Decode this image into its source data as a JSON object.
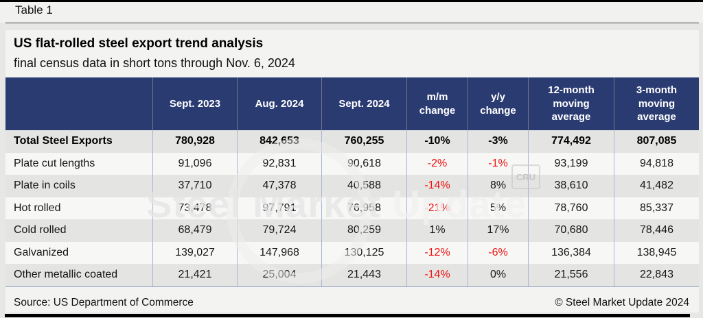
{
  "page": {
    "tab_label": "Table 1",
    "title": "US flat-rolled steel export trend analysis",
    "subtitle": "final census data in short tons through Nov. 6, 2024",
    "source": "Source: US Department of Commerce",
    "copyright": "© Steel Market Update 2024"
  },
  "colors": {
    "header_bg": "#2a3b72",
    "row_alt": "#e4e4e3",
    "row_base": "#f7f7f5",
    "negative_pct": "#ee1111",
    "divider_body": "#a8b4d4",
    "divider_header": "#707689"
  },
  "watermark": {
    "text_primary": "Steel Market ",
    "text_secondary": "Update",
    "badge": "CRU"
  },
  "chart_data": {
    "type": "table",
    "title": "US flat-rolled steel export trend analysis",
    "subtitle": "final census data in short tons through Nov. 6, 2024",
    "columns": [
      "",
      "Sept. 2023",
      "Aug. 2024",
      "Sept. 2024",
      "m/m change",
      "y/y change",
      "12-month moving average",
      "3-month moving average"
    ],
    "rows": [
      {
        "label": "Total Steel Exports",
        "bold": true,
        "cells": [
          {
            "t": "780,928",
            "neg": false
          },
          {
            "t": "842,653",
            "neg": false
          },
          {
            "t": "760,255",
            "neg": false
          },
          {
            "t": "-10%",
            "neg": true
          },
          {
            "t": "-3%",
            "neg": true
          },
          {
            "t": "774,492",
            "neg": false
          },
          {
            "t": "807,085",
            "neg": false
          }
        ]
      },
      {
        "label": "Plate cut lengths",
        "bold": false,
        "cells": [
          {
            "t": "91,096",
            "neg": false
          },
          {
            "t": "92,831",
            "neg": false
          },
          {
            "t": "90,618",
            "neg": false
          },
          {
            "t": "-2%",
            "neg": true
          },
          {
            "t": "-1%",
            "neg": true
          },
          {
            "t": "93,199",
            "neg": false
          },
          {
            "t": "94,818",
            "neg": false
          }
        ]
      },
      {
        "label": "Plate in coils",
        "bold": false,
        "cells": [
          {
            "t": "37,710",
            "neg": false
          },
          {
            "t": "47,378",
            "neg": false
          },
          {
            "t": "40,588",
            "neg": false
          },
          {
            "t": "-14%",
            "neg": true
          },
          {
            "t": "8%",
            "neg": false
          },
          {
            "t": "38,610",
            "neg": false
          },
          {
            "t": "41,482",
            "neg": false
          }
        ]
      },
      {
        "label": "Hot rolled",
        "bold": false,
        "cells": [
          {
            "t": "73,478",
            "neg": false
          },
          {
            "t": "97,791",
            "neg": false
          },
          {
            "t": "76,958",
            "neg": false
          },
          {
            "t": "-21%",
            "neg": true
          },
          {
            "t": "5%",
            "neg": false
          },
          {
            "t": "78,760",
            "neg": false
          },
          {
            "t": "85,337",
            "neg": false
          }
        ]
      },
      {
        "label": "Cold rolled",
        "bold": false,
        "cells": [
          {
            "t": "68,479",
            "neg": false
          },
          {
            "t": "79,724",
            "neg": false
          },
          {
            "t": "80,259",
            "neg": false
          },
          {
            "t": "1%",
            "neg": false
          },
          {
            "t": "17%",
            "neg": false
          },
          {
            "t": "70,680",
            "neg": false
          },
          {
            "t": "78,446",
            "neg": false
          }
        ]
      },
      {
        "label": "Galvanized",
        "bold": false,
        "cells": [
          {
            "t": "139,027",
            "neg": false
          },
          {
            "t": "147,968",
            "neg": false
          },
          {
            "t": "130,125",
            "neg": false
          },
          {
            "t": "-12%",
            "neg": true
          },
          {
            "t": "-6%",
            "neg": true
          },
          {
            "t": "136,384",
            "neg": false
          },
          {
            "t": "138,945",
            "neg": false
          }
        ]
      },
      {
        "label": "Other metallic coated",
        "bold": false,
        "cells": [
          {
            "t": "21,421",
            "neg": false
          },
          {
            "t": "25,004",
            "neg": false
          },
          {
            "t": "21,443",
            "neg": false
          },
          {
            "t": "-14%",
            "neg": true
          },
          {
            "t": "0%",
            "neg": false
          },
          {
            "t": "21,556",
            "neg": false
          },
          {
            "t": "22,843",
            "neg": false
          }
        ]
      }
    ]
  }
}
